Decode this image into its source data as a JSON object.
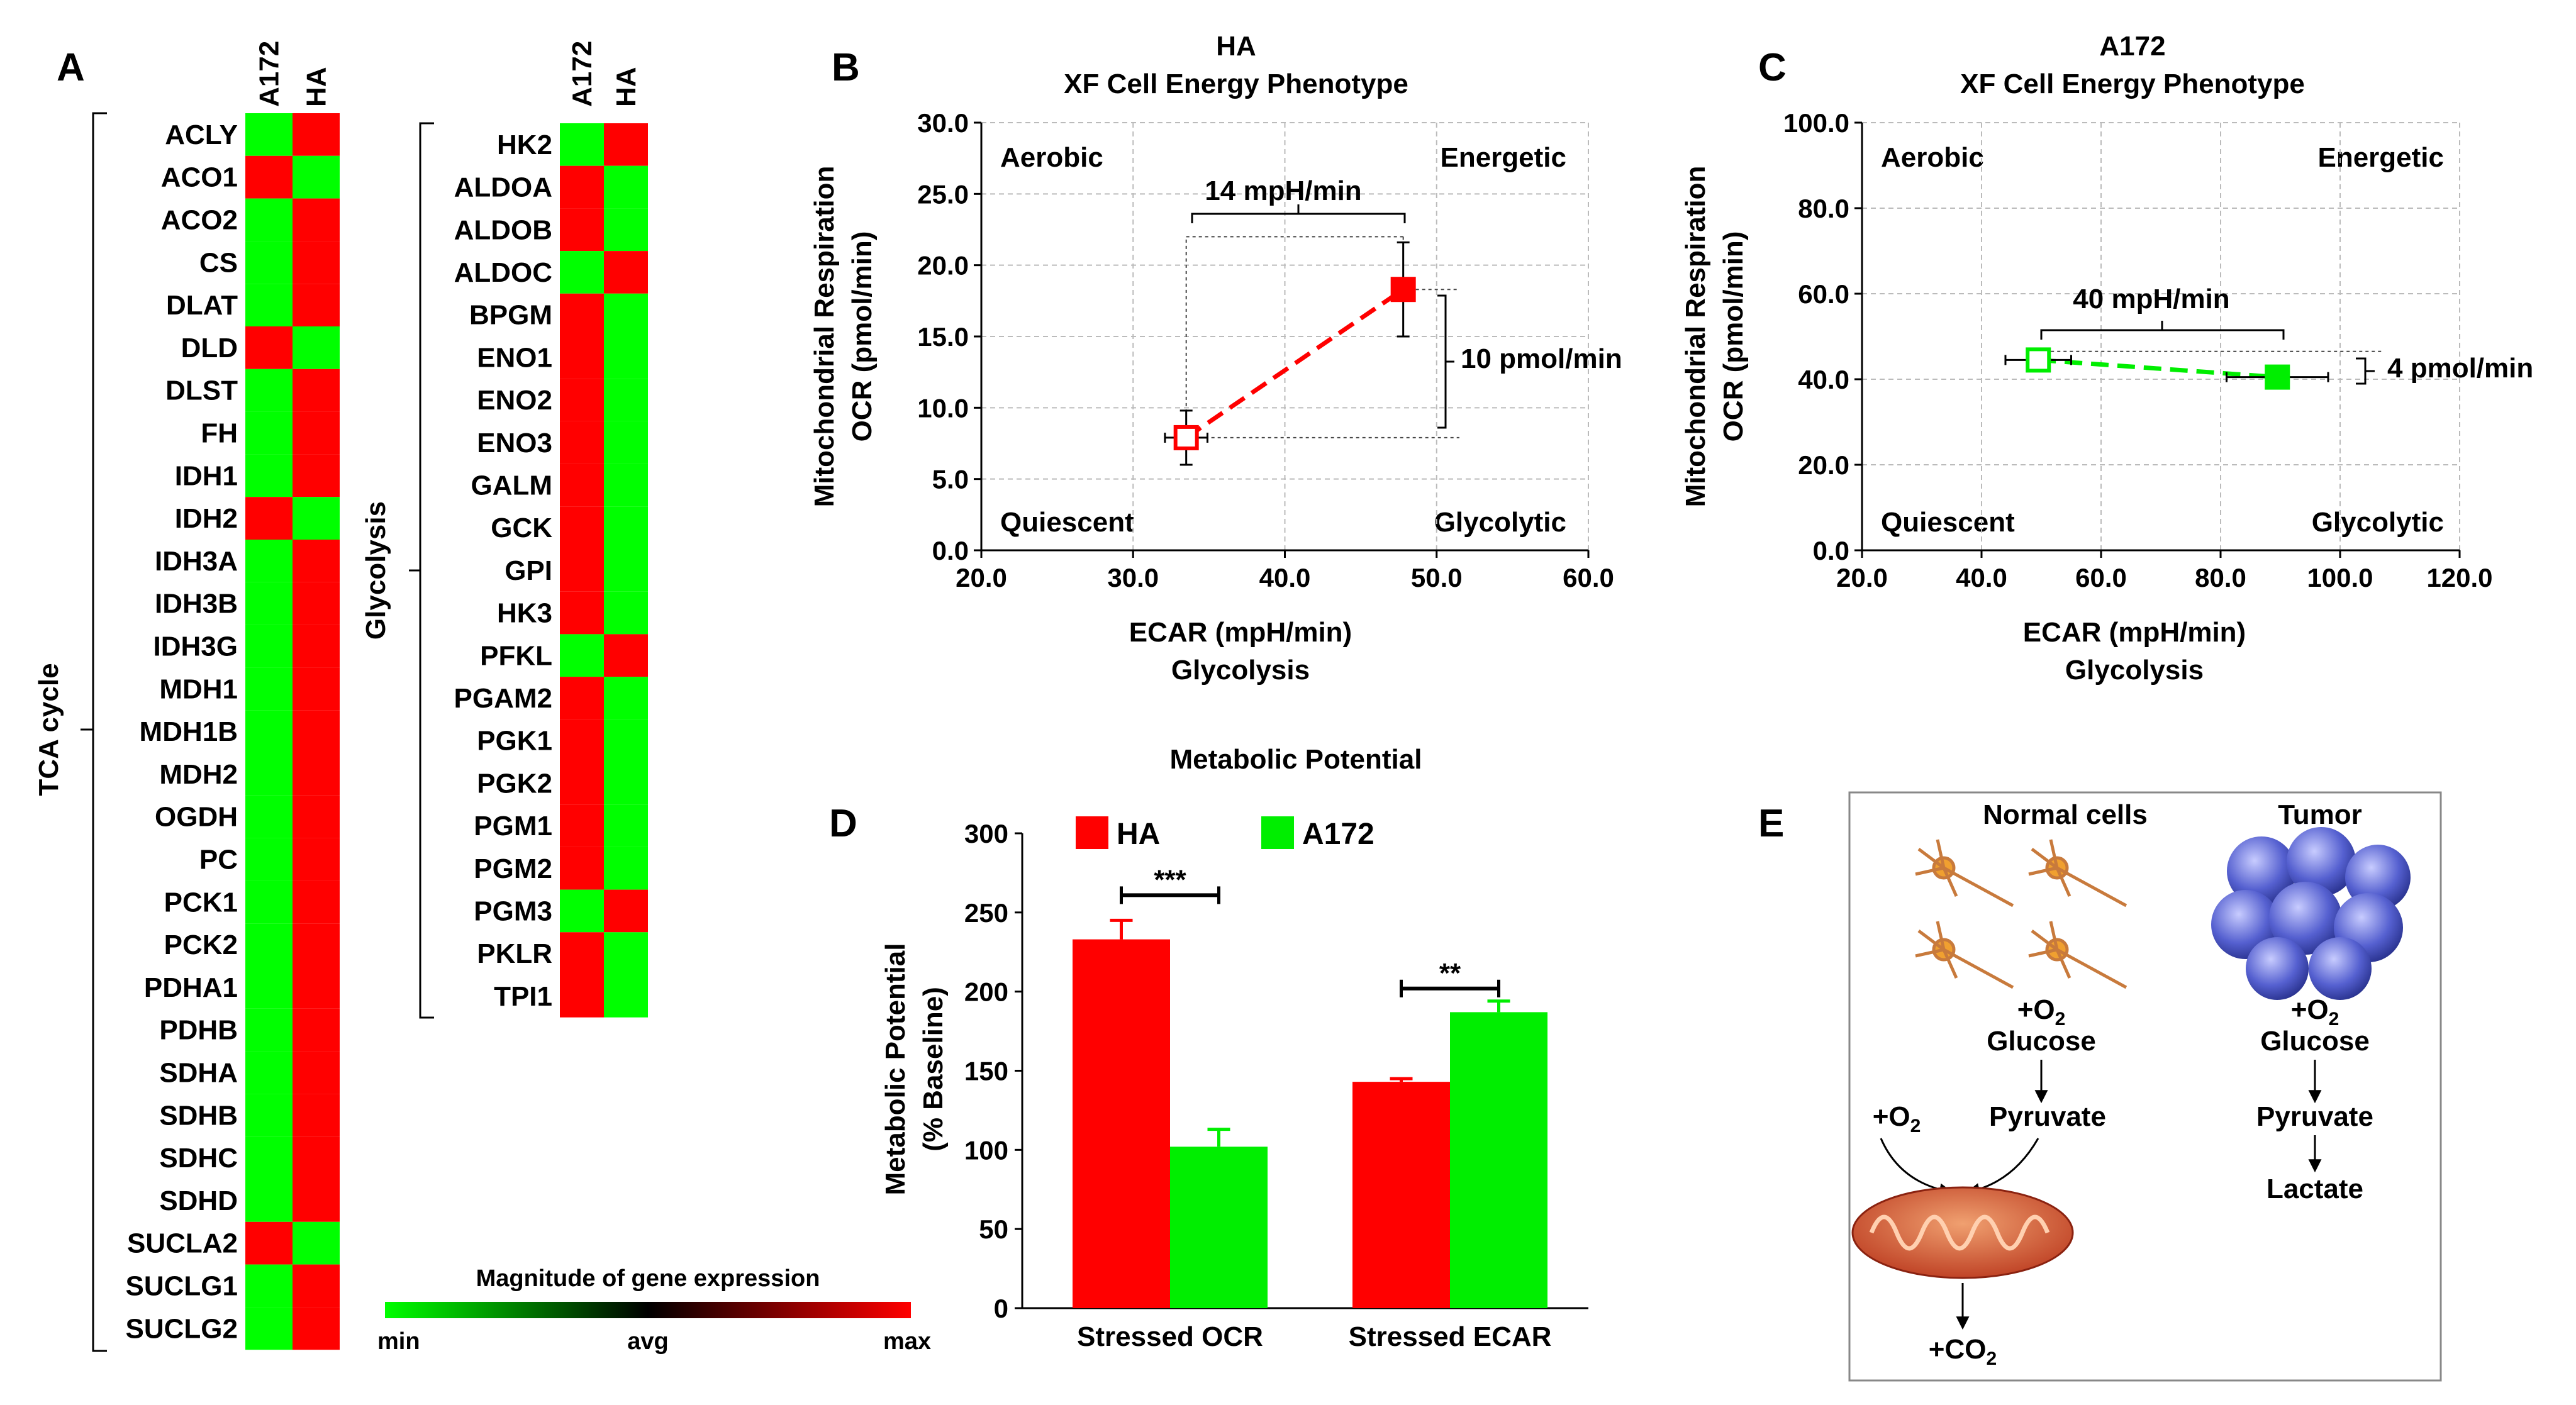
{
  "colors": {
    "high": "#ff0000",
    "low": "#00ff00",
    "mid": "#000000",
    "grid": "#bbbbbb",
    "ha": "#ff0000",
    "a172": "#00ee00"
  },
  "panelA": {
    "label": "A",
    "columns": [
      "A172",
      "HA"
    ],
    "tca": {
      "title": "TCA cycle",
      "genes": [
        "ACLY",
        "ACO1",
        "ACO2",
        "CS",
        "DLAT",
        "DLD",
        "DLST",
        "FH",
        "IDH1",
        "IDH2",
        "IDH3A",
        "IDH3B",
        "IDH3G",
        "MDH1",
        "MDH1B",
        "MDH2",
        "OGDH",
        "PC",
        "PCK1",
        "PCK2",
        "PDHA1",
        "PDHB",
        "SDHA",
        "SDHB",
        "SDHC",
        "SDHD",
        "SUCLA2",
        "SUCLG1",
        "SUCLG2"
      ],
      "a172_high": [
        false,
        true,
        false,
        false,
        false,
        true,
        false,
        false,
        false,
        true,
        false,
        false,
        false,
        false,
        false,
        false,
        false,
        false,
        false,
        false,
        false,
        false,
        false,
        false,
        false,
        false,
        true,
        false,
        false
      ]
    },
    "glycolysis": {
      "title": "Glycolysis",
      "genes": [
        "HK2",
        "ALDOA",
        "ALDOB",
        "ALDOC",
        "BPGM",
        "ENO1",
        "ENO2",
        "ENO3",
        "GALM",
        "GCK",
        "GPI",
        "HK3",
        "PFKL",
        "PGAM2",
        "PGK1",
        "PGK2",
        "PGM1",
        "PGM2",
        "PGM3",
        "PKLR",
        "TPI1"
      ],
      "a172_high": [
        false,
        true,
        true,
        false,
        true,
        true,
        true,
        true,
        true,
        true,
        true,
        true,
        false,
        true,
        true,
        true,
        true,
        true,
        false,
        true,
        true
      ]
    },
    "colorbar": {
      "title": "Magnitude of gene expression",
      "min": "min",
      "avg": "avg",
      "max": "max"
    }
  },
  "panelB": {
    "label": "B",
    "title": [
      "HA",
      "XF Cell Energy Phenotype"
    ],
    "ylabel": [
      "Mitochondrial Respiration",
      "OCR (pmol/min)"
    ],
    "xlabel": [
      "ECAR (mpH/min)",
      "Glycolysis"
    ],
    "xlim": [
      20,
      60
    ],
    "ylim": [
      0,
      30
    ],
    "xticks": [
      "20.0",
      "30.0",
      "40.0",
      "50.0",
      "60.0"
    ],
    "yticks": [
      "0.0",
      "5.0",
      "10.0",
      "15.0",
      "20.0",
      "25.0",
      "30.0"
    ],
    "quadrants": {
      "tl": "Aerobic",
      "tr": "Energetic",
      "bl": "Quiescent",
      "br": "Glycolytic"
    },
    "baseline": {
      "x": 33.5,
      "y": 7.9,
      "xerr": 1.4,
      "yerr": 1.9
    },
    "stressed": {
      "x": 47.8,
      "y": 18.3,
      "xerr": 0.7,
      "yerr": 3.3
    },
    "delta_x": "14 mpH/min",
    "delta_y": "10 pmol/min"
  },
  "panelC": {
    "label": "C",
    "title": [
      "A172",
      "XF Cell Energy Phenotype"
    ],
    "ylabel": [
      "Mitochondrial Respiration",
      "OCR (pmol/min)"
    ],
    "xlabel": [
      "ECAR (mpH/min)",
      "Glycolysis"
    ],
    "xlim": [
      20,
      120
    ],
    "ylim": [
      0,
      100
    ],
    "xticks": [
      "20.0",
      "40.0",
      "60.0",
      "80.0",
      "100.0",
      "120.0"
    ],
    "yticks": [
      "0.0",
      "20.0",
      "40.0",
      "60.0",
      "80.0",
      "100.0"
    ],
    "quadrants": {
      "tl": "Aerobic",
      "tr": "Energetic",
      "bl": "Quiescent",
      "br": "Glycolytic"
    },
    "baseline": {
      "x": 49.5,
      "y": 44.5,
      "xerr": 5.5,
      "yerr": 1.5
    },
    "stressed": {
      "x": 89.5,
      "y": 40.5,
      "xerr": 8.5,
      "yerr": 2.0
    },
    "delta_x": "40 mpH/min",
    "delta_y": "4 pmol/min"
  },
  "chart_data": {
    "type": "bar",
    "title": "Metabolic Potential",
    "ylabel": [
      "Metabolic Potential",
      "(% Baseline)"
    ],
    "categories": [
      "Stressed OCR",
      "Stressed ECAR"
    ],
    "ylim": [
      0,
      300
    ],
    "yticks": [
      "0",
      "50",
      "100",
      "150",
      "200",
      "250",
      "300"
    ],
    "series": [
      {
        "name": "HA",
        "values": [
          233,
          143
        ],
        "errors": [
          12,
          2
        ]
      },
      {
        "name": "A172",
        "values": [
          102,
          187
        ],
        "errors": [
          11,
          7
        ]
      }
    ],
    "significance": [
      "***",
      "**"
    ],
    "panel_label": "D"
  },
  "panelE": {
    "label": "E",
    "normal_title": "Normal cells",
    "tumor_title": "Tumor",
    "o2_prefix": "+O",
    "o2_sub": "2",
    "co2_prefix": "+CO",
    "co2_sub": "2",
    "glucose": "Glucose",
    "pyruvate": "Pyruvate",
    "lactate": "Lactate"
  }
}
